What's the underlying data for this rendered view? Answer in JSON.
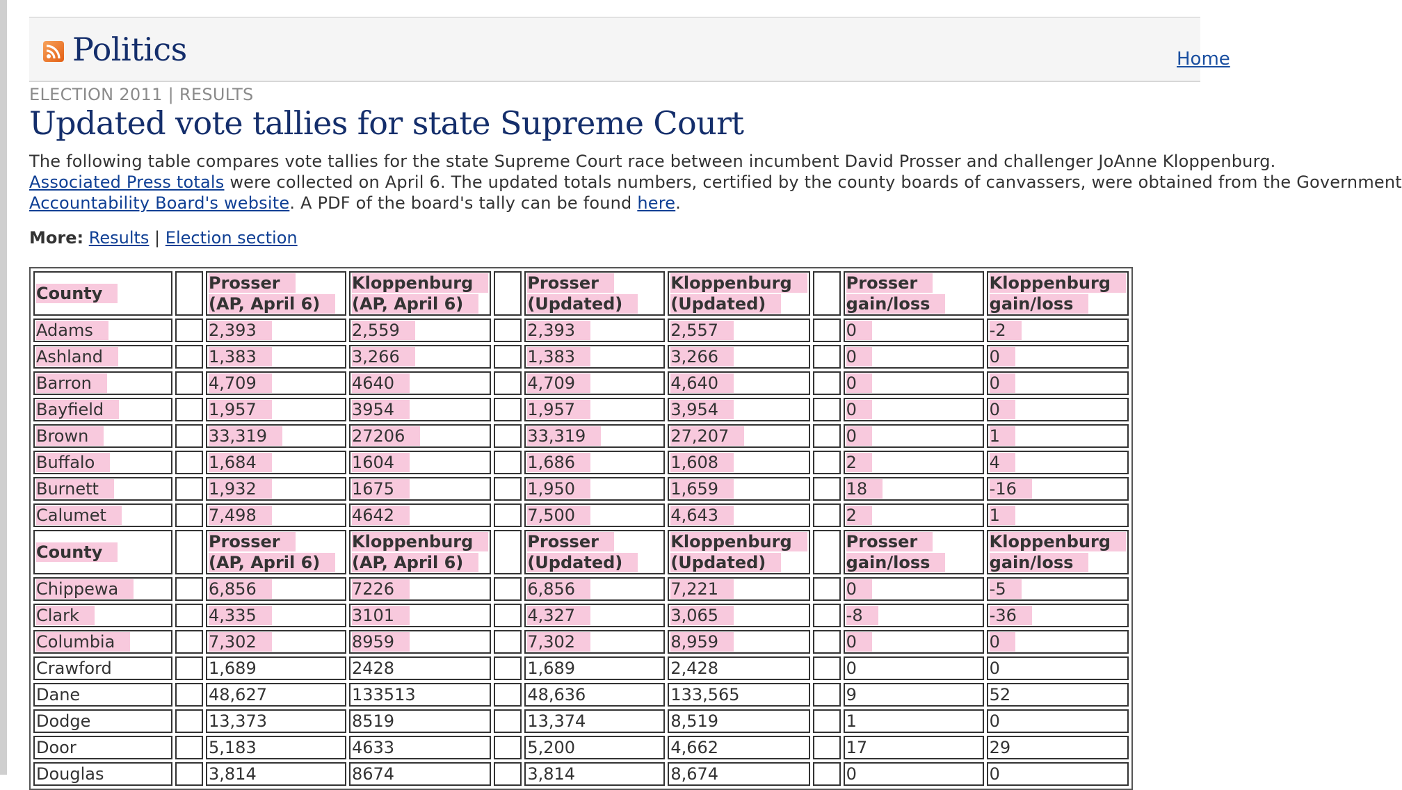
{
  "header": {
    "section": "Politics",
    "home_link": "Home",
    "rss_icon": "rss-feed-icon"
  },
  "article": {
    "kicker": "ELECTION 2011 | RESULTS",
    "headline": "Updated vote tallies for state Supreme Court",
    "intro_line1": "The following table compares vote tallies for the state Supreme Court race between incumbent David Prosser and challenger JoAnne Kloppenburg.",
    "intro_ap_link": "Associated Press totals",
    "intro_line2_mid": " were collected on April 6. The updated totals numbers, certified by the county boards of canvassers, were obtained from the Government",
    "intro_gab_link": "Accountability Board's website",
    "intro_line3_mid": ". A PDF of the board's tally can be found ",
    "intro_here_link": "here",
    "intro_end": ".",
    "more_label": "More:",
    "more_link_results": "Results",
    "more_sep": "|",
    "more_link_election": "Election section"
  },
  "table": {
    "headers": {
      "county": "County",
      "prosser_ap_1": "Prosser",
      "prosser_ap_2": "(AP, April 6)",
      "klop_ap_1": "Kloppenburg",
      "klop_ap_2": "(AP, April 6)",
      "prosser_upd_1": "Prosser",
      "prosser_upd_2": "(Updated)",
      "klop_upd_1": "Kloppenburg",
      "klop_upd_2": "(Updated)",
      "prosser_gain_1": "Prosser",
      "prosser_gain_2": "gain/loss",
      "klop_gain_1": "Kloppenburg",
      "klop_gain_2": "gain/loss"
    },
    "rows_block1": [
      {
        "county": "Adams",
        "p_ap": "2,393",
        "k_ap": "2,559",
        "p_up": "2,393",
        "k_up": "2,557",
        "p_gl": "0",
        "k_gl": "-2",
        "highlight": true
      },
      {
        "county": "Ashland",
        "p_ap": "1,383",
        "k_ap": "3,266",
        "p_up": "1,383",
        "k_up": "3,266",
        "p_gl": "0",
        "k_gl": "0",
        "highlight": true
      },
      {
        "county": "Barron",
        "p_ap": "4,709",
        "k_ap": "4640",
        "p_up": "4,709",
        "k_up": "4,640",
        "p_gl": "0",
        "k_gl": "0",
        "highlight": true
      },
      {
        "county": "Bayfield",
        "p_ap": "1,957",
        "k_ap": "3954",
        "p_up": "1,957",
        "k_up": "3,954",
        "p_gl": "0",
        "k_gl": "0",
        "highlight": true
      },
      {
        "county": "Brown",
        "p_ap": "33,319",
        "k_ap": "27206",
        "p_up": "33,319",
        "k_up": "27,207",
        "p_gl": "0",
        "k_gl": "1",
        "highlight": true
      },
      {
        "county": "Buffalo",
        "p_ap": "1,684",
        "k_ap": "1604",
        "p_up": "1,686",
        "k_up": "1,608",
        "p_gl": "2",
        "k_gl": "4",
        "highlight": true
      },
      {
        "county": "Burnett",
        "p_ap": "1,932",
        "k_ap": "1675",
        "p_up": "1,950",
        "k_up": "1,659",
        "p_gl": "18",
        "k_gl": "-16",
        "highlight": true
      },
      {
        "county": "Calumet",
        "p_ap": "7,498",
        "k_ap": "4642",
        "p_up": "7,500",
        "k_up": "4,643",
        "p_gl": "2",
        "k_gl": "1",
        "highlight": true
      }
    ],
    "rows_block2": [
      {
        "county": "Chippewa",
        "p_ap": "6,856",
        "k_ap": "7226",
        "p_up": "6,856",
        "k_up": "7,221",
        "p_gl": "0",
        "k_gl": "-5",
        "highlight": true
      },
      {
        "county": "Clark",
        "p_ap": "4,335",
        "k_ap": "3101",
        "p_up": "4,327",
        "k_up": "3,065",
        "p_gl": "-8",
        "k_gl": "-36",
        "highlight": true
      },
      {
        "county": "Columbia",
        "p_ap": "7,302",
        "k_ap": "8959",
        "p_up": "7,302",
        "k_up": "8,959",
        "p_gl": "0",
        "k_gl": "0",
        "highlight": true
      },
      {
        "county": "Crawford",
        "p_ap": "1,689",
        "k_ap": "2428",
        "p_up": "1,689",
        "k_up": "2,428",
        "p_gl": "0",
        "k_gl": "0",
        "highlight": false
      },
      {
        "county": "Dane",
        "p_ap": "48,627",
        "k_ap": "133513",
        "p_up": "48,636",
        "k_up": "133,565",
        "p_gl": "9",
        "k_gl": "52",
        "highlight": false
      },
      {
        "county": "Dodge",
        "p_ap": "13,373",
        "k_ap": "8519",
        "p_up": "13,374",
        "k_up": "8,519",
        "p_gl": "1",
        "k_gl": "0",
        "highlight": false
      },
      {
        "county": "Door",
        "p_ap": "5,183",
        "k_ap": "4633",
        "p_up": "5,200",
        "k_up": "4,662",
        "p_gl": "17",
        "k_gl": "29",
        "highlight": false
      },
      {
        "county": "Douglas",
        "p_ap": "3,814",
        "k_ap": "8674",
        "p_up": "3,814",
        "k_up": "8,674",
        "p_gl": "0",
        "k_gl": "0",
        "highlight": false
      }
    ]
  }
}
